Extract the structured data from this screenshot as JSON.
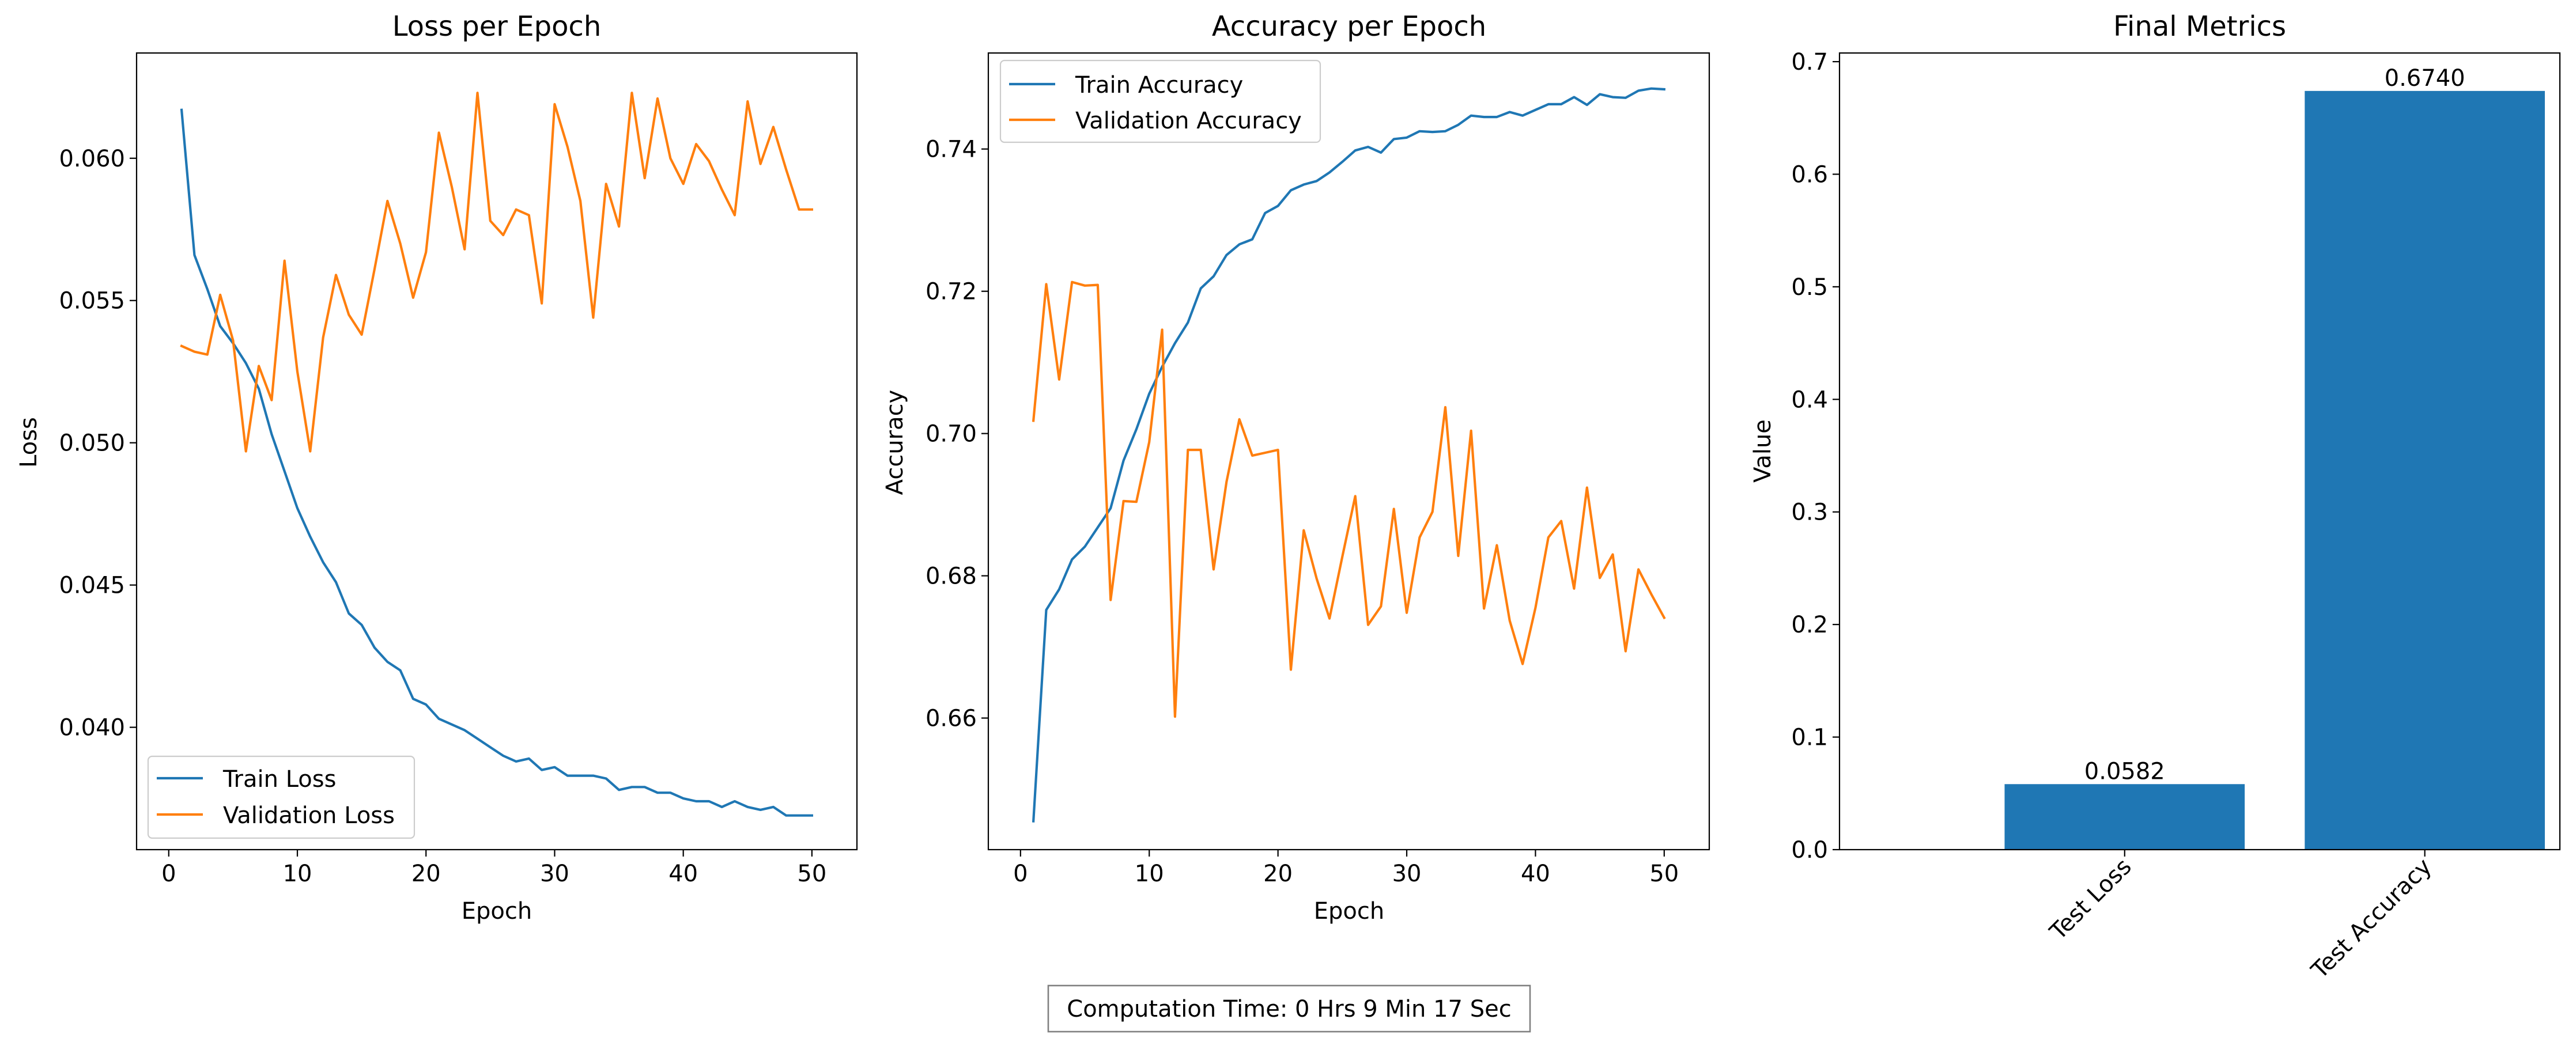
{
  "chart_data": [
    {
      "type": "line",
      "title": "Loss per Epoch",
      "xlabel": "Epoch",
      "ylabel": "Loss",
      "xlim": [
        -2.5,
        53.5
      ],
      "ylim": [
        0.0357,
        0.0637
      ],
      "xticks": [
        0,
        10,
        20,
        30,
        40,
        50
      ],
      "yticks": [
        0.04,
        0.045,
        0.05,
        0.055,
        0.06
      ],
      "ytick_labels": [
        "0.040",
        "0.045",
        "0.050",
        "0.055",
        "0.060"
      ],
      "legend_position": "lower-left",
      "grid": false,
      "x": [
        1,
        2,
        3,
        4,
        5,
        6,
        7,
        8,
        9,
        10,
        11,
        12,
        13,
        14,
        15,
        16,
        17,
        18,
        19,
        20,
        21,
        22,
        23,
        24,
        25,
        26,
        27,
        28,
        29,
        30,
        31,
        32,
        33,
        34,
        35,
        36,
        37,
        38,
        39,
        40,
        41,
        42,
        43,
        44,
        45,
        46,
        47,
        48,
        49,
        50
      ],
      "series": [
        {
          "name": "Train Loss",
          "color": "#1f77b4",
          "values": [
            0.0617,
            0.0566,
            0.0554,
            0.0541,
            0.0535,
            0.0528,
            0.0519,
            0.0503,
            0.049,
            0.0477,
            0.0467,
            0.0458,
            0.0451,
            0.044,
            0.0436,
            0.0428,
            0.0423,
            0.042,
            0.041,
            0.0408,
            0.0403,
            0.0401,
            0.0399,
            0.0396,
            0.0393,
            0.039,
            0.0388,
            0.0389,
            0.0385,
            0.0386,
            0.0383,
            0.0383,
            0.0383,
            0.0382,
            0.0378,
            0.0379,
            0.0379,
            0.0377,
            0.0377,
            0.0375,
            0.0374,
            0.0374,
            0.0372,
            0.0374,
            0.0372,
            0.0371,
            0.0372,
            0.0369,
            0.0369,
            0.0369
          ]
        },
        {
          "name": "Validation Loss",
          "color": "#ff7f0e",
          "values": [
            0.0534,
            0.0532,
            0.0531,
            0.0552,
            0.0536,
            0.0497,
            0.0527,
            0.0515,
            0.0564,
            0.0525,
            0.0497,
            0.0537,
            0.0559,
            0.0545,
            0.0538,
            0.0561,
            0.0585,
            0.057,
            0.0551,
            0.0567,
            0.0609,
            0.059,
            0.0568,
            0.0623,
            0.0578,
            0.0573,
            0.0582,
            0.058,
            0.0549,
            0.0619,
            0.0604,
            0.0585,
            0.0544,
            0.0591,
            0.0576,
            0.0623,
            0.0593,
            0.0621,
            0.06,
            0.0591,
            0.0605,
            0.0599,
            0.0589,
            0.058,
            0.062,
            0.0598,
            0.0611,
            0.0596,
            0.0582,
            0.0582
          ]
        }
      ]
    },
    {
      "type": "line",
      "title": "Accuracy per Epoch",
      "xlabel": "Epoch",
      "ylabel": "Accuracy",
      "xlim": [
        -2.5,
        53.5
      ],
      "ylim": [
        0.6415,
        0.7535
      ],
      "xticks": [
        0,
        10,
        20,
        30,
        40,
        50
      ],
      "yticks": [
        0.66,
        0.68,
        0.7,
        0.72,
        0.74
      ],
      "ytick_labels": [
        "0.66",
        "0.68",
        "0.70",
        "0.72",
        "0.74"
      ],
      "legend_position": "upper-left",
      "grid": false,
      "x": [
        1,
        2,
        3,
        4,
        5,
        6,
        7,
        8,
        9,
        10,
        11,
        12,
        13,
        14,
        15,
        16,
        17,
        18,
        19,
        20,
        21,
        22,
        23,
        24,
        25,
        26,
        27,
        28,
        29,
        30,
        31,
        32,
        33,
        34,
        35,
        36,
        37,
        38,
        39,
        40,
        41,
        42,
        43,
        44,
        45,
        46,
        47,
        48,
        49,
        50
      ],
      "series": [
        {
          "name": "Train Accuracy",
          "color": "#1f77b4",
          "values": [
            0.6455,
            0.6752,
            0.6781,
            0.6823,
            0.6841,
            0.6868,
            0.6895,
            0.6962,
            0.7006,
            0.7056,
            0.7094,
            0.7127,
            0.7156,
            0.7204,
            0.7221,
            0.7251,
            0.7266,
            0.7273,
            0.731,
            0.732,
            0.7342,
            0.735,
            0.7355,
            0.7367,
            0.7382,
            0.7398,
            0.7403,
            0.7395,
            0.7414,
            0.7416,
            0.7425,
            0.7424,
            0.7425,
            0.7434,
            0.7447,
            0.7445,
            0.7445,
            0.7452,
            0.7447,
            0.7455,
            0.7463,
            0.7463,
            0.7473,
            0.7462,
            0.7477,
            0.7473,
            0.7472,
            0.7482,
            0.7485,
            0.7484
          ]
        },
        {
          "name": "Validation Accuracy",
          "color": "#ff7f0e",
          "values": [
            0.7018,
            0.721,
            0.7076,
            0.7213,
            0.7208,
            0.7209,
            0.6766,
            0.6905,
            0.6904,
            0.6988,
            0.7146,
            0.6602,
            0.6977,
            0.6977,
            0.6809,
            0.6932,
            0.702,
            0.6969,
            0.6973,
            0.6977,
            0.6668,
            0.6864,
            0.6796,
            0.674,
            0.6827,
            0.6912,
            0.6731,
            0.6757,
            0.6894,
            0.6748,
            0.6854,
            0.689,
            0.7037,
            0.6828,
            0.7004,
            0.6754,
            0.6843,
            0.6737,
            0.6676,
            0.6755,
            0.6854,
            0.6877,
            0.6782,
            0.6924,
            0.6797,
            0.683,
            0.6694,
            0.6809,
            0.6774,
            0.6741
          ]
        }
      ]
    },
    {
      "type": "bar",
      "title": "Final Metrics",
      "xlabel": "",
      "ylabel": "Value",
      "ylim": [
        0,
        0.7077
      ],
      "yticks": [
        0.0,
        0.1,
        0.2,
        0.3,
        0.4,
        0.5,
        0.6,
        0.7
      ],
      "ytick_labels": [
        "0.0",
        "0.1",
        "0.2",
        "0.3",
        "0.4",
        "0.5",
        "0.6",
        "0.7"
      ],
      "categories": [
        "Test Loss",
        "Test Accuracy"
      ],
      "values": [
        0.0582,
        0.674
      ],
      "value_labels": [
        "0.0582",
        "0.6740"
      ],
      "color": "#1f77b4",
      "grid": false
    }
  ],
  "footer": {
    "computation_time": "Computation Time: 0 Hrs 9 Min 17 Sec"
  }
}
